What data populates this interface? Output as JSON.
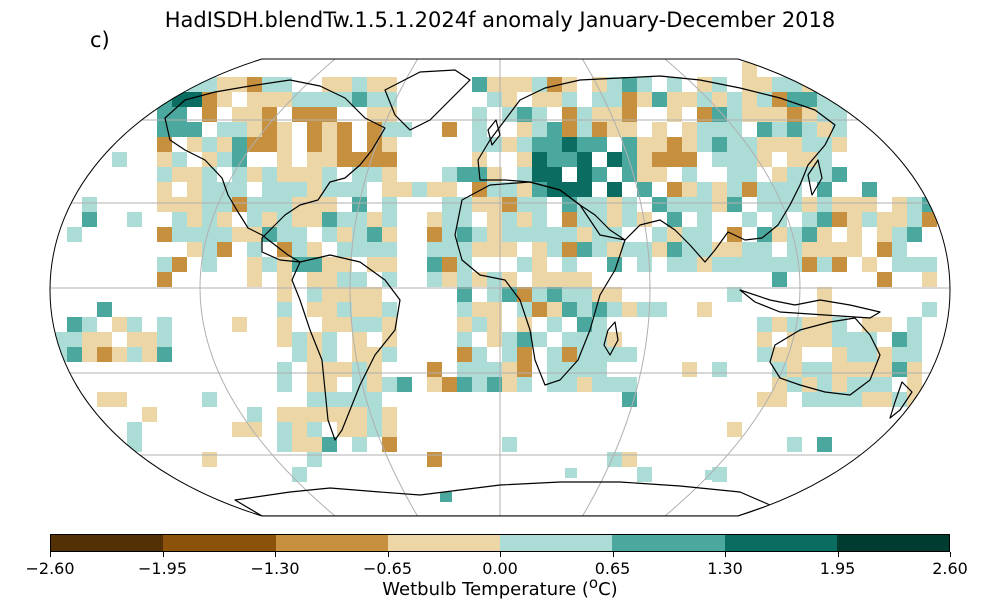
{
  "title": "HadISDH.blendTw.1.5.1.2024f anomaly January-December 2018",
  "panel_label": "c)",
  "colorbar": {
    "colors": [
      "#543005",
      "#8c510a",
      "#c7903f",
      "#ecd6a5",
      "#abdcd6",
      "#4ba89e",
      "#0b6d62",
      "#003c30"
    ],
    "tick_labels": [
      "−2.60",
      "−1.95",
      "−1.30",
      "−0.65",
      "0.00",
      "0.65",
      "1.30",
      "1.95",
      "2.60"
    ],
    "label_text": "Wetbulb Temperature (",
    "label_sup": "o",
    "label_unit": "C)"
  },
  "map": {
    "projection": "robinson",
    "gridlines": true,
    "graticule_color": "#b0b0b0",
    "coastline_color": "#000000"
  }
}
